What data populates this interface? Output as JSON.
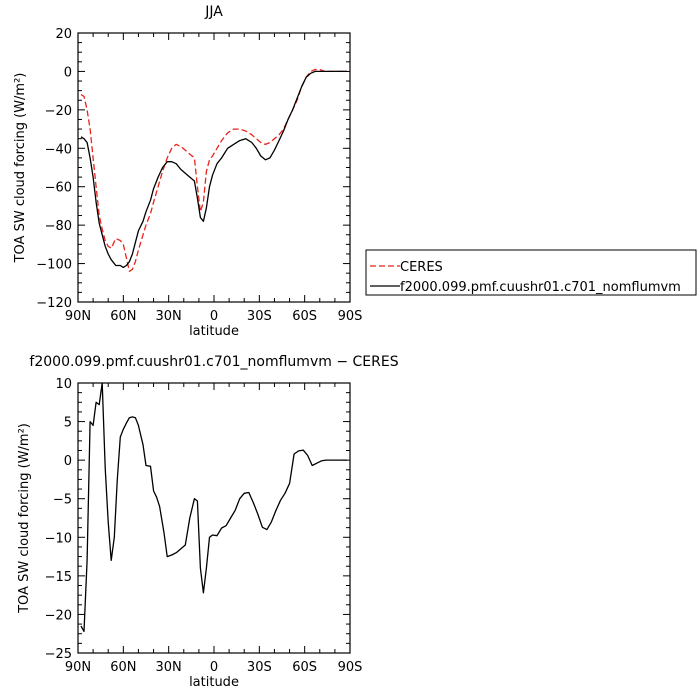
{
  "chart_data": [
    {
      "type": "line",
      "title": "JJA",
      "xlabel": "latitude",
      "ylabel": "TOA SW cloud forcing (W/m²)",
      "x_ticks": [
        {
          "label": "90N",
          "value": 90
        },
        {
          "label": "60N",
          "value": 60
        },
        {
          "label": "30N",
          "value": 30
        },
        {
          "label": "0",
          "value": 0
        },
        {
          "label": "30S",
          "value": -30
        },
        {
          "label": "60S",
          "value": -60
        },
        {
          "label": "90S",
          "value": -90
        }
      ],
      "xlim": [
        90,
        -90
      ],
      "ylim": [
        -120,
        20
      ],
      "y_ticks": [
        20,
        0,
        -20,
        -40,
        -60,
        -80,
        -100,
        -120
      ],
      "legend_position": "right",
      "series": [
        {
          "name": "CERES",
          "color": "#e8231c",
          "dash": "dashed",
          "x": [
            88,
            86,
            84,
            82,
            80,
            78,
            76,
            74,
            72,
            70,
            68,
            65,
            62,
            60,
            58,
            56,
            54,
            52,
            50,
            47,
            45,
            42,
            40,
            37,
            34,
            31,
            28,
            25,
            22,
            19,
            16,
            13,
            11,
            9,
            7,
            5,
            3,
            1,
            -2,
            -5,
            -9,
            -13,
            -17,
            -21,
            -25,
            -28,
            -31,
            -34,
            -37,
            -40,
            -43,
            -46,
            -49,
            -52,
            -55,
            -58,
            -61,
            -64,
            -67,
            -70,
            -73,
            -76,
            -80,
            -85,
            -88
          ],
          "y": [
            -12,
            -13,
            -20,
            -30,
            -45,
            -60,
            -75,
            -82,
            -88,
            -91,
            -92,
            -87,
            -88,
            -90,
            -97,
            -104,
            -103,
            -99,
            -93,
            -85,
            -80,
            -74,
            -68,
            -60,
            -52,
            -45,
            -40,
            -38,
            -39,
            -41,
            -43,
            -45,
            -60,
            -73,
            -68,
            -52,
            -46,
            -44,
            -40,
            -36,
            -32,
            -30,
            -30,
            -31,
            -33,
            -35,
            -37,
            -38,
            -37,
            -35,
            -33,
            -30,
            -25,
            -20,
            -15,
            -8,
            -3,
            0,
            1,
            1,
            0,
            0,
            0,
            0,
            0
          ]
        },
        {
          "name": "f2000.099.pmf.cuushr01.c701_nomflumvm",
          "color": "#000000",
          "dash": "solid",
          "x": [
            88,
            86,
            84,
            82,
            80,
            78,
            76,
            74,
            72,
            70,
            68,
            65,
            62,
            60,
            58,
            56,
            54,
            52,
            50,
            47,
            45,
            42,
            40,
            37,
            34,
            31,
            28,
            25,
            22,
            19,
            16,
            13,
            11,
            9,
            7,
            5,
            3,
            1,
            -2,
            -5,
            -9,
            -13,
            -17,
            -21,
            -25,
            -28,
            -31,
            -34,
            -37,
            -40,
            -43,
            -46,
            -49,
            -52,
            -55,
            -58,
            -61,
            -64,
            -67,
            -70,
            -73,
            -76,
            -80,
            -85,
            -88
          ],
          "y": [
            -34,
            -35,
            -37,
            -45,
            -55,
            -68,
            -79,
            -85,
            -91,
            -95,
            -98,
            -101,
            -101,
            -102,
            -101,
            -99,
            -95,
            -89,
            -83,
            -78,
            -73,
            -67,
            -61,
            -55,
            -50,
            -47,
            -47,
            -48,
            -51,
            -53,
            -55,
            -57,
            -66,
            -76,
            -78,
            -71,
            -60,
            -54,
            -48,
            -45,
            -40,
            -38,
            -36,
            -35,
            -37,
            -40,
            -44,
            -46,
            -45,
            -41,
            -36,
            -31,
            -25,
            -20,
            -14,
            -8,
            -3,
            -1,
            0,
            0,
            0,
            0,
            0,
            0,
            0
          ]
        }
      ]
    },
    {
      "type": "line",
      "title": "f2000.099.pmf.cuushr01.c701_nomflumvm − CERES",
      "xlabel": "latitude",
      "ylabel": "TOA SW cloud forcing (W/m²)",
      "x_ticks": [
        {
          "label": "90N",
          "value": 90
        },
        {
          "label": "60N",
          "value": 60
        },
        {
          "label": "30N",
          "value": 30
        },
        {
          "label": "0",
          "value": 0
        },
        {
          "label": "30S",
          "value": -30
        },
        {
          "label": "60S",
          "value": -60
        },
        {
          "label": "90S",
          "value": -90
        }
      ],
      "xlim": [
        90,
        -90
      ],
      "ylim": [
        -25,
        10
      ],
      "y_ticks": [
        10,
        5,
        0,
        -5,
        -10,
        -15,
        -20,
        -25
      ],
      "series": [
        {
          "name": "",
          "color": "#000000",
          "dash": "solid",
          "x": [
            88,
            86,
            84,
            82,
            80,
            78,
            76,
            74,
            72,
            70,
            68,
            66,
            64,
            62,
            60,
            58,
            56,
            54,
            52,
            50,
            47,
            45,
            42,
            40,
            38,
            36,
            33,
            31,
            28,
            25,
            22,
            19,
            16,
            13,
            11,
            9,
            7,
            5,
            3,
            1,
            -2,
            -5,
            -8,
            -11,
            -14,
            -17,
            -20,
            -23,
            -26,
            -29,
            -32,
            -35,
            -38,
            -41,
            -44,
            -47,
            -50,
            -53,
            -56,
            -59,
            -62,
            -65,
            -68,
            -71,
            -74,
            -77,
            -80,
            -85,
            -88
          ],
          "y": [
            -21.5,
            -22.2,
            -13.0,
            5.0,
            4.5,
            7.5,
            7.2,
            10.0,
            -1.0,
            -8.0,
            -13.0,
            -10.0,
            -2.5,
            3.0,
            4.0,
            4.8,
            5.5,
            5.6,
            5.5,
            4.5,
            2.0,
            -0.7,
            -0.8,
            -4.0,
            -4.8,
            -6.0,
            -9.5,
            -12.5,
            -12.3,
            -12.0,
            -11.5,
            -11.0,
            -7.5,
            -5.0,
            -5.3,
            -14.0,
            -17.2,
            -14.0,
            -10.0,
            -9.7,
            -9.8,
            -8.8,
            -8.5,
            -7.5,
            -6.5,
            -5.0,
            -4.3,
            -4.2,
            -5.5,
            -7.0,
            -8.7,
            -9.0,
            -8.0,
            -6.5,
            -5.2,
            -4.3,
            -3.0,
            0.8,
            1.2,
            1.3,
            0.6,
            -0.7,
            -0.4,
            -0.1,
            0.0,
            0.0,
            0.0,
            0.0,
            0.0
          ]
        }
      ]
    }
  ]
}
